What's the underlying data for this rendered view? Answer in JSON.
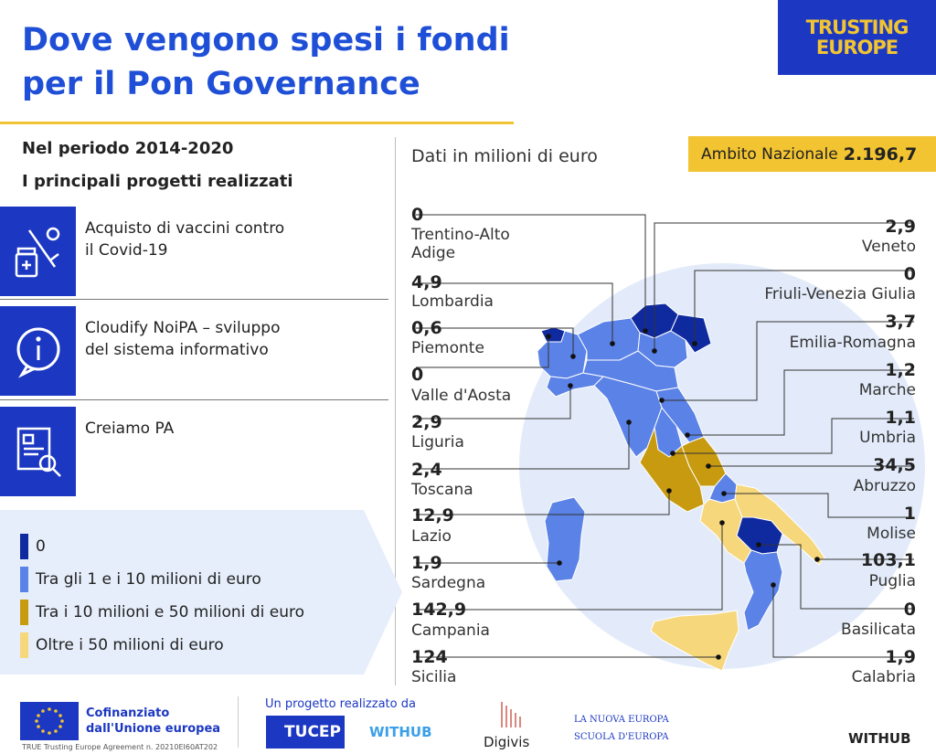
{
  "header": {
    "title_line1": "Dove vengono spesi i fondi",
    "title_line2": "per il Pon Governance",
    "brand_line1": "TRUSTING",
    "brand_line2": "EUROPE"
  },
  "intro": {
    "period": "Nel periodo 2014-2020",
    "subtitle": "I principali progetti realizzati",
    "unit_note": "Dati in milioni di euro"
  },
  "national": {
    "label": "Ambito Nazionale",
    "value": "2.196,7"
  },
  "projects": [
    {
      "line1": "Acquisto di vaccini contro",
      "line2": "il Covid-19",
      "icon": "vaccine-icon"
    },
    {
      "line1": "Cloudify NoiPA – sviluppo",
      "line2": "del sistema informativo",
      "icon": "info-icon"
    },
    {
      "line1": "Creiamo PA",
      "line2": "",
      "icon": "document-search-icon"
    }
  ],
  "legend": [
    {
      "label": "0",
      "color": "#0f2a9e"
    },
    {
      "label": "Tra gli 1 e i 10 milioni di euro",
      "color": "#5b82e6"
    },
    {
      "label": "Tra i 10 milioni e 50 milioni di euro",
      "color": "#c79a10"
    },
    {
      "label": "Oltre i 50 milioni di euro",
      "color": "#f6d77c"
    }
  ],
  "chart_data": {
    "type": "table",
    "unit": "milioni di euro",
    "regions": [
      {
        "name": "Trentino-Alto Adige",
        "value": "0",
        "side": "left"
      },
      {
        "name": "Lombardia",
        "value": "4,9",
        "side": "left"
      },
      {
        "name": "Piemonte",
        "value": "0,6",
        "side": "left"
      },
      {
        "name": "Valle d'Aosta",
        "value": "0",
        "side": "left"
      },
      {
        "name": "Liguria",
        "value": "2,9",
        "side": "left"
      },
      {
        "name": "Toscana",
        "value": "2,4",
        "side": "left"
      },
      {
        "name": "Lazio",
        "value": "12,9",
        "side": "left"
      },
      {
        "name": "Sardegna",
        "value": "1,9",
        "side": "left"
      },
      {
        "name": "Campania",
        "value": "142,9",
        "side": "left"
      },
      {
        "name": "Sicilia",
        "value": "124",
        "side": "left"
      },
      {
        "name": "Veneto",
        "value": "2,9",
        "side": "right"
      },
      {
        "name": "Friuli-Venezia Giulia",
        "value": "0",
        "side": "right"
      },
      {
        "name": "Emilia-Romagna",
        "value": "3,7",
        "side": "right"
      },
      {
        "name": "Marche",
        "value": "1,2",
        "side": "right"
      },
      {
        "name": "Umbria",
        "value": "1,1",
        "side": "right"
      },
      {
        "name": "Abruzzo",
        "value": "34,5",
        "side": "right"
      },
      {
        "name": "Molise",
        "value": "1",
        "side": "right"
      },
      {
        "name": "Puglia",
        "value": "103,1",
        "side": "right"
      },
      {
        "name": "Basilicata",
        "value": "0",
        "side": "right"
      },
      {
        "name": "Calabria",
        "value": "1,9",
        "side": "right"
      }
    ],
    "national": {
      "label": "Ambito Nazionale",
      "value": "2.196,7"
    }
  },
  "footer": {
    "cofin_line1": "Cofinanziato",
    "cofin_line2": "dall'Unione europea",
    "agreement": "TRUE Trusting Europe Agreement n. 20210EI60AT202",
    "realized_by": "Un progetto realizzato da",
    "tucep": "TUCEP",
    "withub": "WITHUB",
    "digivis": "Digivis",
    "nuova_line1": "LA NUOVA EUROPA",
    "nuova_line2": "SCUOLA D'EUROPA",
    "withub_right": "WITHUB"
  },
  "colors": {
    "blue_title": "#1e4fd6",
    "brand_bg": "#1c38c2",
    "yellow": "#f2c431"
  }
}
